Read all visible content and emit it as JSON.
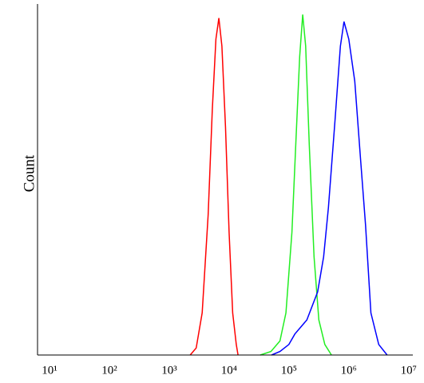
{
  "chart_data": {
    "type": "line",
    "y_label": "Count",
    "xscale": "log",
    "xlim": [
      6.3,
      11750000
    ],
    "ylim": [
      0,
      100
    ],
    "xticks": [
      {
        "value": 10,
        "label": "10¹"
      },
      {
        "value": 100,
        "label": "10²"
      },
      {
        "value": 1000,
        "label": "10³"
      },
      {
        "value": 10000,
        "label": "10⁴"
      },
      {
        "value": 100000,
        "label": "10⁵"
      },
      {
        "value": 1000000,
        "label": "10⁶"
      },
      {
        "value": 10000000,
        "label": "10⁷"
      }
    ],
    "series": [
      {
        "color": "#ff0000",
        "x": [
          2240,
          2820,
          3550,
          4470,
          5250,
          6030,
          6760,
          7590,
          8710,
          10000,
          11480,
          13180,
          14130
        ],
        "values": [
          0,
          2,
          12,
          40,
          70,
          90,
          96,
          88,
          65,
          35,
          12,
          3,
          0
        ]
      },
      {
        "color": "#22ee22",
        "x": [
          33100,
          50100,
          70800,
          89100,
          112200,
          131800,
          151400,
          169800,
          190500,
          218800,
          263000,
          316200,
          398100,
          512900
        ],
        "values": [
          0,
          1,
          4,
          12,
          35,
          62,
          85,
          97,
          88,
          60,
          28,
          10,
          3,
          0
        ]
      },
      {
        "color": "#0000ff",
        "x": [
          51300,
          70800,
          100000,
          125900,
          199500,
          302000,
          380200,
          457100,
          588800,
          724400,
          831800,
          1000000,
          1258900,
          1584900,
          1905500,
          2344200,
          3162300,
          4365200
        ],
        "values": [
          0,
          1,
          3,
          6,
          10,
          18,
          28,
          42,
          67,
          88,
          95,
          90,
          78,
          55,
          37,
          12,
          3,
          0
        ]
      }
    ]
  }
}
